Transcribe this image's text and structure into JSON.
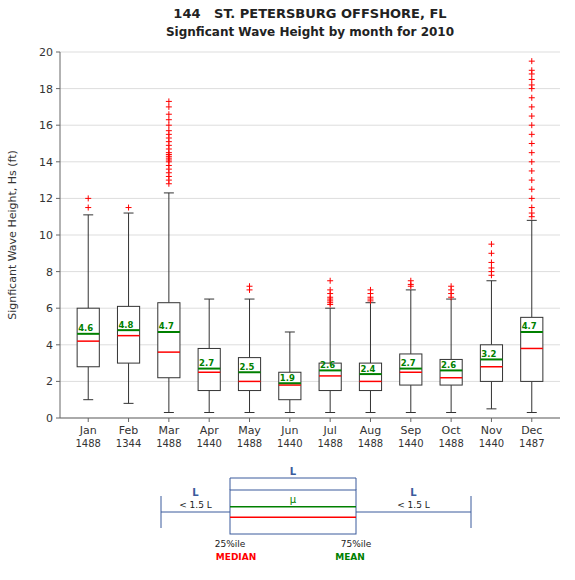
{
  "chart_data": {
    "type": "box",
    "title": "144   ST. PETERSBURG OFFSHORE, FL",
    "subtitle": "Signficant Wave Height by month for 2010",
    "y_label": "Signficant Wave Height, Hs (ft)",
    "categories": [
      "Jan",
      "Feb",
      "Mar",
      "Apr",
      "May",
      "Jun",
      "Jul",
      "Aug",
      "Sep",
      "Oct",
      "Nov",
      "Dec"
    ],
    "counts": [
      1488,
      1344,
      1488,
      1440,
      1488,
      1440,
      1488,
      1488,
      1440,
      1488,
      1440,
      1487
    ],
    "q1": [
      2.8,
      3.0,
      2.2,
      1.5,
      1.5,
      1.0,
      1.5,
      1.5,
      1.8,
      1.8,
      2.0,
      2.0
    ],
    "q3": [
      6.0,
      6.1,
      6.3,
      3.8,
      3.3,
      2.5,
      3.0,
      3.0,
      3.5,
      3.2,
      4.0,
      5.5
    ],
    "whislo": [
      1.0,
      0.8,
      0.3,
      0.3,
      0.3,
      0.3,
      0.3,
      0.3,
      0.3,
      0.3,
      0.5,
      0.3
    ],
    "whishi": [
      11.1,
      11.2,
      12.3,
      6.5,
      6.5,
      4.7,
      6.0,
      6.3,
      7.0,
      6.5,
      7.5,
      10.8
    ],
    "series": [
      {
        "name": "MEDIAN",
        "color": "#ff0000",
        "values": [
          4.2,
          4.5,
          3.6,
          2.5,
          2.0,
          1.8,
          2.3,
          2.0,
          2.5,
          2.2,
          2.8,
          3.8
        ]
      },
      {
        "name": "MEAN",
        "color": "#008000",
        "values": [
          4.6,
          4.8,
          4.7,
          2.7,
          2.5,
          1.9,
          2.6,
          2.4,
          2.7,
          2.6,
          3.2,
          4.7
        ]
      }
    ],
    "fliers": {
      "color": "#ff0000",
      "values": [
        [
          11.5,
          12.0
        ],
        [
          11.5
        ],
        [
          12.8,
          13.0,
          13.2,
          13.4,
          13.6,
          13.8,
          14.0,
          14.1,
          14.2,
          14.3,
          14.4,
          14.5,
          14.7,
          14.9,
          15.1,
          15.3,
          15.5,
          15.7,
          16.0,
          16.3,
          16.6,
          17.0,
          17.3
        ],
        [],
        [
          7.0,
          7.2
        ],
        [],
        [
          6.2,
          6.3,
          6.4,
          6.5,
          6.6,
          6.8,
          7.0,
          7.5
        ],
        [
          6.4,
          6.5,
          6.6,
          6.8,
          7.0
        ],
        [
          7.2,
          7.3,
          7.5
        ],
        [
          6.6,
          6.8,
          7.0,
          7.2
        ],
        [
          7.8,
          8.0,
          8.2,
          8.5,
          9.0,
          9.5
        ],
        [
          11.0,
          11.2,
          11.5,
          12.0,
          12.5,
          13.0,
          13.5,
          14.0,
          14.5,
          15.0,
          15.5,
          16.0,
          16.5,
          17.0,
          17.5,
          18.0,
          18.2,
          18.5,
          18.8,
          19.0,
          19.5
        ]
      ]
    },
    "data_labels": true,
    "ylim": [
      0,
      20
    ],
    "yticks": [
      0,
      2,
      4,
      6,
      8,
      10,
      12,
      14,
      16,
      18,
      20
    ],
    "grid": true,
    "legend_diagram": {
      "iqr_label": "L",
      "whisker_unit_label": "L",
      "whisker_label": "< 1.5 L",
      "q1_label": "25%ile",
      "q3_label": "75%ile",
      "mean_symbol": "μ"
    }
  }
}
